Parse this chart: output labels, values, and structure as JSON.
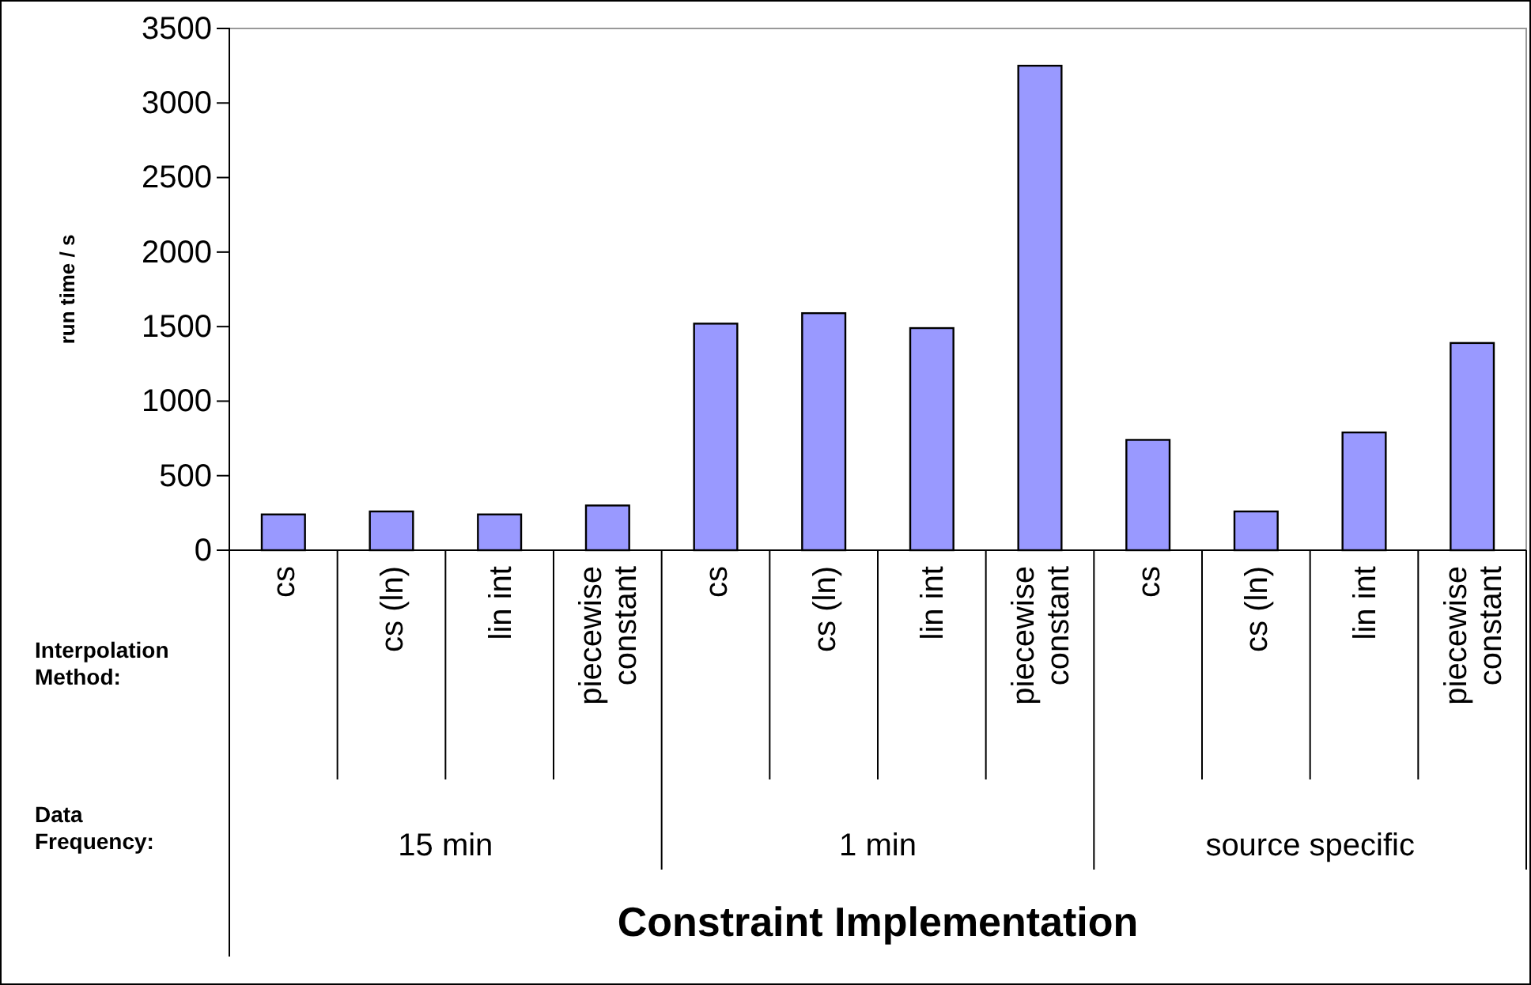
{
  "chart_data": {
    "type": "bar",
    "ylabel": "run time / s",
    "xlabel": "Constraint Implementation",
    "categories": [
      "cs",
      "cs (ln)",
      "lin int",
      "piecewise constant",
      "cs",
      "cs (ln)",
      "lin int",
      "piecewise constant",
      "cs",
      "cs (ln)",
      "lin int",
      "piecewise constant"
    ],
    "values": [
      240,
      260,
      240,
      300,
      1520,
      1590,
      1490,
      3250,
      740,
      260,
      790,
      1390
    ],
    "color": "#9999ff",
    "ylim": [
      0,
      3500
    ],
    "yticks": [
      0,
      500,
      1000,
      1500,
      2000,
      2500,
      3000,
      3500
    ],
    "annotations": [
      "Interpolation Method:",
      "Data Frequency:",
      "15 min",
      "1 min",
      "source specific"
    ]
  }
}
